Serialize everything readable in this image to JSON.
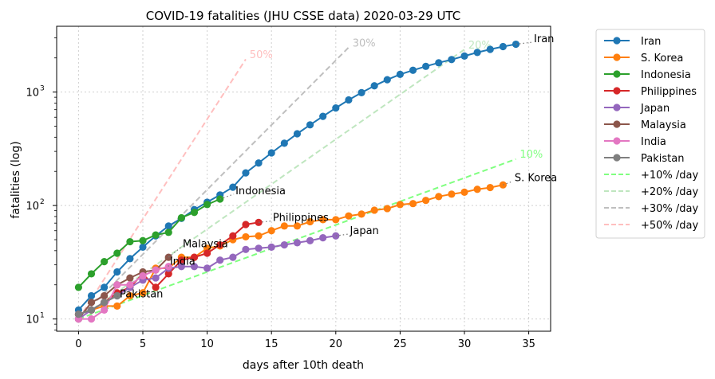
{
  "chart_data": {
    "type": "line",
    "title": "COVID-19 fatalities (JHU CSSE data) 2020-03-29 UTC",
    "xlabel": "days after 10th death",
    "ylabel": "fatalities (log)",
    "xlim": [
      -1.7,
      36.7
    ],
    "ylim": [
      7.8,
      3800
    ],
    "yscale": "log",
    "grid": true,
    "legend_position": "outside-right",
    "x_ticks": [
      0,
      5,
      10,
      15,
      20,
      25,
      30,
      35
    ],
    "x_tick_labels": [
      "0",
      "5",
      "10",
      "15",
      "20",
      "25",
      "30",
      "35"
    ],
    "y_ticks": [
      10,
      100,
      1000
    ],
    "y_tick_labels": [
      "10",
      "10",
      "10"
    ],
    "y_tick_exponents": [
      "1",
      "2",
      "3"
    ],
    "series": [
      {
        "name": "Iran",
        "color": "#1f77b4",
        "x": [
          0,
          1,
          2,
          3,
          4,
          5,
          6,
          7,
          8,
          9,
          10,
          11,
          12,
          13,
          14,
          15,
          16,
          17,
          18,
          19,
          20,
          21,
          22,
          23,
          24,
          25,
          26,
          27,
          28,
          29,
          30,
          31,
          32,
          33,
          34
        ],
        "y": [
          12,
          16,
          19,
          26,
          34,
          43,
          54,
          66,
          77,
          92,
          107,
          124,
          145,
          194,
          237,
          291,
          354,
          429,
          514,
          611,
          724,
          853,
          988,
          1135,
          1284,
          1433,
          1556,
          1685,
          1812,
          1934,
          2077,
          2234,
          2378,
          2517,
          2640
        ],
        "end_label": "Iran",
        "label_x": 35.4,
        "label_y": 2750
      },
      {
        "name": "S. Korea",
        "color": "#ff7f0e",
        "x": [
          0,
          1,
          2,
          3,
          4,
          5,
          6,
          7,
          8,
          9,
          10,
          11,
          12,
          13,
          14,
          15,
          16,
          17,
          18,
          19,
          20,
          21,
          22,
          23,
          24,
          25,
          26,
          27,
          28,
          29,
          30,
          31,
          32,
          33
        ],
        "y": [
          11,
          12,
          13,
          13,
          16,
          17,
          28,
          28,
          35,
          35,
          42,
          44,
          50,
          53,
          54,
          60,
          66,
          66,
          72,
          75,
          75,
          81,
          84,
          91,
          94,
          102,
          104,
          111,
          120,
          126,
          131,
          139,
          144,
          152
        ],
        "end_label": "S. Korea",
        "label_x": 33.9,
        "label_y": 164
      },
      {
        "name": "Indonesia",
        "color": "#2ca02c",
        "x": [
          0,
          1,
          2,
          3,
          4,
          5,
          6,
          7,
          8,
          9,
          10,
          11
        ],
        "y": [
          19,
          25,
          32,
          38,
          48,
          49,
          55,
          58,
          78,
          87,
          102,
          114
        ],
        "end_label": "Indonesia",
        "label_x": 12.2,
        "label_y": 126
      },
      {
        "name": "Philippines",
        "color": "#d62728",
        "x": [
          0,
          1,
          2,
          3,
          4,
          5,
          6,
          7,
          8,
          9,
          10,
          11,
          12,
          13,
          14
        ],
        "y": [
          11,
          12,
          14,
          17,
          19,
          25,
          19,
          25,
          33,
          35,
          38,
          45,
          54,
          68,
          71
        ],
        "end_label": "Philippines",
        "label_x": 15.1,
        "label_y": 73
      },
      {
        "name": "Japan",
        "color": "#9467bd",
        "x": [
          0,
          1,
          2,
          3,
          4,
          5,
          6,
          7,
          8,
          9,
          10,
          11,
          12,
          13,
          14,
          15,
          16,
          17,
          18,
          19,
          20
        ],
        "y": [
          10,
          12,
          14,
          16,
          19,
          22,
          23,
          28,
          29,
          29,
          28,
          33,
          35,
          41,
          42,
          43,
          45,
          47,
          49,
          52,
          54
        ],
        "end_label": "Japan",
        "label_x": 21.1,
        "label_y": 56
      },
      {
        "name": "Malaysia",
        "color": "#8c564b",
        "x": [
          0,
          1,
          2,
          3,
          4,
          5,
          6,
          7
        ],
        "y": [
          10,
          14,
          16,
          20,
          23,
          26,
          27,
          35
        ],
        "end_label": "Malaysia",
        "label_x": 8.1,
        "label_y": 43
      },
      {
        "name": "India",
        "color": "#e377c2",
        "x": [
          0,
          1,
          2,
          3,
          4,
          5,
          6,
          7
        ],
        "y": [
          10,
          10,
          12,
          20,
          20,
          24,
          27,
          29
        ],
        "end_label": "India",
        "label_x": 7.1,
        "label_y": 30
      },
      {
        "name": "Pakistan",
        "color": "#7f7f7f",
        "x": [
          0,
          1,
          2,
          3
        ],
        "y": [
          11,
          12,
          14,
          16
        ],
        "end_label": "Pakistan",
        "label_x": 3.2,
        "label_y": 15.5
      }
    ],
    "reference_lines": [
      {
        "name": "+10% /day",
        "color": "#80ff80",
        "x": [
          0,
          34
        ],
        "y": [
          10,
          256.5
        ],
        "label": "10%",
        "label_x": 34.3,
        "label_y": 265
      },
      {
        "name": "+20% /day",
        "color": "#bfe6bf",
        "x": [
          0,
          30
        ],
        "y": [
          10,
          2373.8
        ],
        "label": "20%",
        "label_x": 30.3,
        "label_y": 2420
      },
      {
        "name": "+30% /day",
        "color": "#bfbfbf",
        "x": [
          0,
          21
        ],
        "y": [
          10,
          2474.5
        ],
        "label": "30%",
        "label_x": 21.3,
        "label_y": 2520
      },
      {
        "name": "+50% /day",
        "color": "#ffbfbf",
        "x": [
          0,
          13
        ],
        "y": [
          10,
          1946.2
        ],
        "label": "50%",
        "label_x": 13.3,
        "label_y": 1985
      }
    ]
  }
}
